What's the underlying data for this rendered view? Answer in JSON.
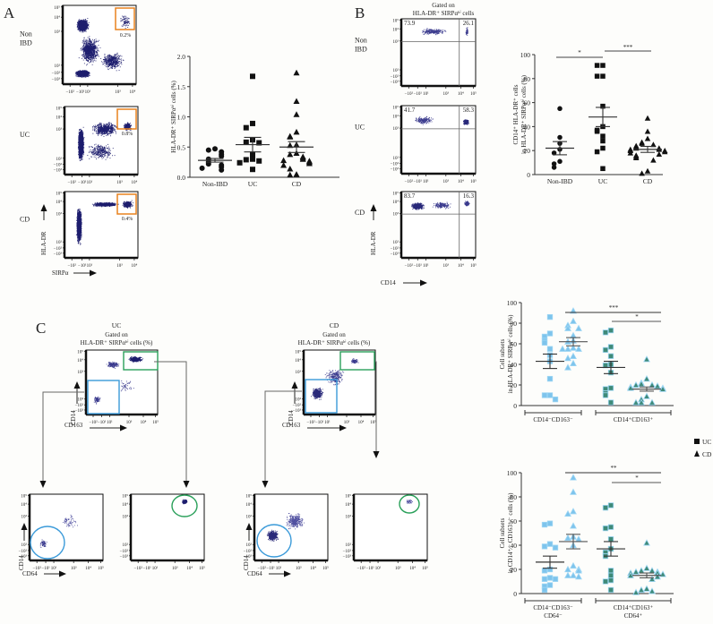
{
  "panels": {
    "A": {
      "letter": "A",
      "flow_rows": [
        {
          "label_lines": [
            "Non",
            "IBD"
          ],
          "gate_percent": "0.2%"
        },
        {
          "label_lines": [
            "UC"
          ],
          "gate_percent": "0.8%"
        },
        {
          "label_lines": [
            "CD"
          ],
          "gate_percent": "0.4%"
        }
      ],
      "flow_x_ticks": [
        "−10²",
        "−10¹",
        "10¹",
        "10³",
        "10⁴"
      ],
      "flow_y_ticks": [
        "10⁵",
        "10⁴",
        "10³",
        "10²",
        "−10²",
        "−10³"
      ],
      "x_axis": "SIRPα",
      "y_axis": "HLA-DR",
      "gate_color": "#e8821e"
    },
    "B": {
      "letter": "B",
      "header_lines": [
        "Gated on",
        "HLA-DR⁺ SIRPαʰⁱ cells"
      ],
      "flow_rows": [
        {
          "label_lines": [
            "Non",
            "IBD"
          ],
          "q_left": "73.9",
          "q_right": "26.1"
        },
        {
          "label_lines": [
            "UC"
          ],
          "q_left": "41.7",
          "q_right": "58.3"
        },
        {
          "label_lines": [
            "CD"
          ],
          "q_left": "83.7",
          "q_right": "16.3"
        }
      ],
      "flow_x_ticks": [
        "−10²",
        "−10¹",
        "10¹",
        "10³",
        "10⁴",
        "10⁵"
      ],
      "flow_y_ticks": [
        "10⁵",
        "10⁴",
        "10³",
        "10²",
        "−10²",
        "−10³"
      ],
      "x_axis": "CD14",
      "y_axis": "HLA-DR"
    },
    "C": {
      "letter": "C",
      "flows": [
        {
          "title": "UC",
          "header_lines": [
            "Gated on",
            "HLA-DR⁺ SIRPαʰⁱ cells (%)"
          ],
          "x_axis": "CD163",
          "y_axis": "CD14"
        },
        {
          "title": "CD",
          "header_lines": [
            "Gated on",
            "HLA-DR⁺ SIRPαʰⁱ cells (%)"
          ],
          "x_axis": "CD163",
          "y_axis": "CD14"
        }
      ],
      "sub_x_axis": "CD64",
      "sub_y_axis": "CD14",
      "flow_x_ticks": [
        "−10²",
        "−10¹",
        "10¹",
        "10³",
        "10⁴",
        "10⁵"
      ],
      "flow_y_ticks": [
        "10⁵",
        "10⁴",
        "10³",
        "10²",
        "−10²",
        "−10³"
      ],
      "gate_blue": "#3a9ad9",
      "gate_green": "#2aa05a",
      "legend": [
        {
          "symbol": "square",
          "label": "UC"
        },
        {
          "symbol": "triangle",
          "label": "CD"
        }
      ]
    }
  },
  "chart_data": [
    {
      "id": "A-scatter",
      "type": "scatter",
      "title": "",
      "xlabel": "",
      "ylabel": "HLA-DR⁺ SIRPαʰⁱ cells (%)",
      "ylim": [
        0,
        2.0
      ],
      "yticks": [
        0.0,
        0.5,
        1.0,
        1.5,
        2.0
      ],
      "ytick_labels": [
        "0.0",
        "0.5",
        "1.0",
        "1.5",
        "2.0"
      ],
      "categories": [
        "Non-IBD",
        "UC",
        "CD"
      ],
      "series": [
        {
          "name": "Non-IBD",
          "marker": "circle",
          "values": [
            0.47,
            0.45,
            0.42,
            0.38,
            0.35,
            0.3,
            0.25,
            0.22,
            0.2,
            0.17,
            0.15,
            0.12
          ],
          "mean": 0.28,
          "sem": 0.03
        },
        {
          "name": "UC",
          "marker": "square",
          "values": [
            1.67,
            0.89,
            0.82,
            0.62,
            0.58,
            0.57,
            0.38,
            0.3,
            0.29,
            0.27,
            0.24,
            0.13
          ],
          "mean": 0.54,
          "sem": 0.12
        },
        {
          "name": "CD",
          "marker": "triangle",
          "values": [
            1.73,
            1.26,
            1.04,
            0.75,
            0.68,
            0.67,
            0.54,
            0.53,
            0.4,
            0.38,
            0.34,
            0.32,
            0.3,
            0.28,
            0.27,
            0.25,
            0.23,
            0.2,
            0.14,
            0.05,
            0.04
          ],
          "mean": 0.5,
          "sem": 0.09
        }
      ]
    },
    {
      "id": "B-scatter",
      "type": "scatter",
      "title": "",
      "xlabel": "",
      "ylabel": "CD14⁺ HLA-DR⁺ cells in HLA-DR⁺ SIRPαʰⁱ cells (%)",
      "ylim": [
        0,
        100
      ],
      "yticks": [
        0,
        20,
        40,
        60,
        80,
        100
      ],
      "ytick_labels": [
        "0",
        "20",
        "40",
        "60",
        "80",
        "100"
      ],
      "categories": [
        "Non-IBD",
        "UC",
        "CD"
      ],
      "series": [
        {
          "name": "Non-IBD",
          "marker": "circle",
          "values": [
            55,
            31,
            26,
            21,
            18,
            11,
            9,
            6
          ],
          "mean": 22,
          "sem": 5.5
        },
        {
          "name": "UC",
          "marker": "square",
          "values": [
            91,
            91,
            82,
            82,
            57,
            40,
            37,
            36,
            32,
            28,
            22,
            19,
            5
          ],
          "mean": 48,
          "sem": 8
        },
        {
          "name": "CD",
          "marker": "triangle",
          "values": [
            47,
            36,
            30,
            27,
            26,
            25,
            24,
            23,
            22,
            22,
            21,
            21,
            20,
            20,
            19,
            18,
            17,
            16,
            15,
            14,
            12,
            3,
            1
          ],
          "mean": 21,
          "sem": 2.5
        }
      ],
      "significance": [
        {
          "from": "Non-IBD",
          "to": "UC",
          "label": "*"
        },
        {
          "from": "UC",
          "to": "CD",
          "label": "***"
        }
      ]
    },
    {
      "id": "C-scatter-top",
      "type": "scatter",
      "title": "",
      "xlabel": "",
      "ylabel": "Cell subsets in HLA-DR⁺ SIRPαʰⁱ cells (%)",
      "ylim": [
        0,
        100
      ],
      "yticks": [
        0,
        20,
        40,
        60,
        80,
        100
      ],
      "ytick_labels": [
        "0",
        "20",
        "40",
        "60",
        "80",
        "100"
      ],
      "categories": [
        "CD14⁻CD163⁻",
        "CD14⁺CD163⁺"
      ],
      "series": [
        {
          "name": "UC CD14⁻CD163⁻",
          "group": 0,
          "marker": "square",
          "color": "#7ec4ec",
          "values": [
            86,
            70,
            67,
            63,
            61,
            55,
            49,
            43,
            26,
            10,
            10,
            6
          ],
          "mean": 43,
          "sem": 7
        },
        {
          "name": "CD CD14⁻CD163⁻",
          "group": 0,
          "marker": "triangle",
          "color": "#7ec4ec",
          "values": [
            92,
            82,
            78,
            75,
            75,
            68,
            63,
            62,
            56,
            55,
            55,
            55,
            48,
            46,
            41,
            37
          ],
          "mean": 62,
          "sem": 4
        },
        {
          "name": "UC CD14⁺CD163⁺",
          "group": 1,
          "marker": "square",
          "color": "#3f8a78",
          "values": [
            73,
            71,
            57,
            54,
            48,
            40,
            39,
            32,
            17,
            16,
            12,
            10,
            3
          ],
          "mean": 37,
          "sem": 6
        },
        {
          "name": "CD CD14⁺CD163⁺",
          "group": 1,
          "marker": "triangle",
          "color": "#3f8a78",
          "values": [
            45,
            26,
            22,
            21,
            20,
            20,
            19,
            18,
            17,
            17,
            16,
            9,
            6,
            3,
            3,
            3
          ],
          "mean": 16,
          "sem": 2
        }
      ],
      "significance": [
        {
          "label": "***"
        },
        {
          "label": "*"
        }
      ]
    },
    {
      "id": "C-scatter-bottom",
      "type": "scatter",
      "title": "",
      "xlabel": "",
      "ylabel": "Cell subsets in CD14⁺∕⁻ CD163⁺∕⁻ cells (%)",
      "ylim": [
        0,
        100
      ],
      "yticks": [
        0,
        20,
        40,
        60,
        80,
        100
      ],
      "ytick_labels": [
        "0",
        "20",
        "40",
        "60",
        "80",
        "100"
      ],
      "categories": [
        "CD14⁻CD163⁻ CD64⁻",
        "CD14⁺CD163⁺ CD64⁺"
      ],
      "series": [
        {
          "name": "UC CD14⁻CD163⁻ CD64⁻",
          "group": 0,
          "marker": "square",
          "color": "#7ec4ec",
          "values": [
            58,
            57,
            41,
            39,
            38,
            20,
            19,
            13,
            12,
            12,
            7,
            6,
            3
          ],
          "mean": 26,
          "sem": 5
        },
        {
          "name": "CD CD14⁻CD163⁻ CD64⁻",
          "group": 0,
          "marker": "triangle",
          "color": "#7ec4ec",
          "values": [
            96,
            84,
            68,
            66,
            56,
            47,
            46,
            45,
            40,
            23,
            20,
            20,
            19,
            15,
            15,
            14
          ],
          "mean": 43,
          "sem": 6
        },
        {
          "name": "UC CD14⁺CD163⁺ CD64⁺",
          "group": 1,
          "marker": "square",
          "color": "#3f8a78",
          "values": [
            73,
            71,
            55,
            54,
            45,
            37,
            34,
            31,
            19,
            15,
            11,
            10,
            3
          ],
          "mean": 37,
          "sem": 6
        },
        {
          "name": "CD CD14⁺CD163⁺ CD64⁺",
          "group": 1,
          "marker": "triangle",
          "color": "#3f8a78",
          "values": [
            42,
            21,
            19,
            19,
            18,
            18,
            17,
            17,
            16,
            15,
            14,
            12,
            4,
            3,
            2,
            1
          ],
          "mean": 15,
          "sem": 2
        }
      ],
      "significance": [
        {
          "label": "**"
        },
        {
          "label": "*"
        }
      ]
    }
  ]
}
